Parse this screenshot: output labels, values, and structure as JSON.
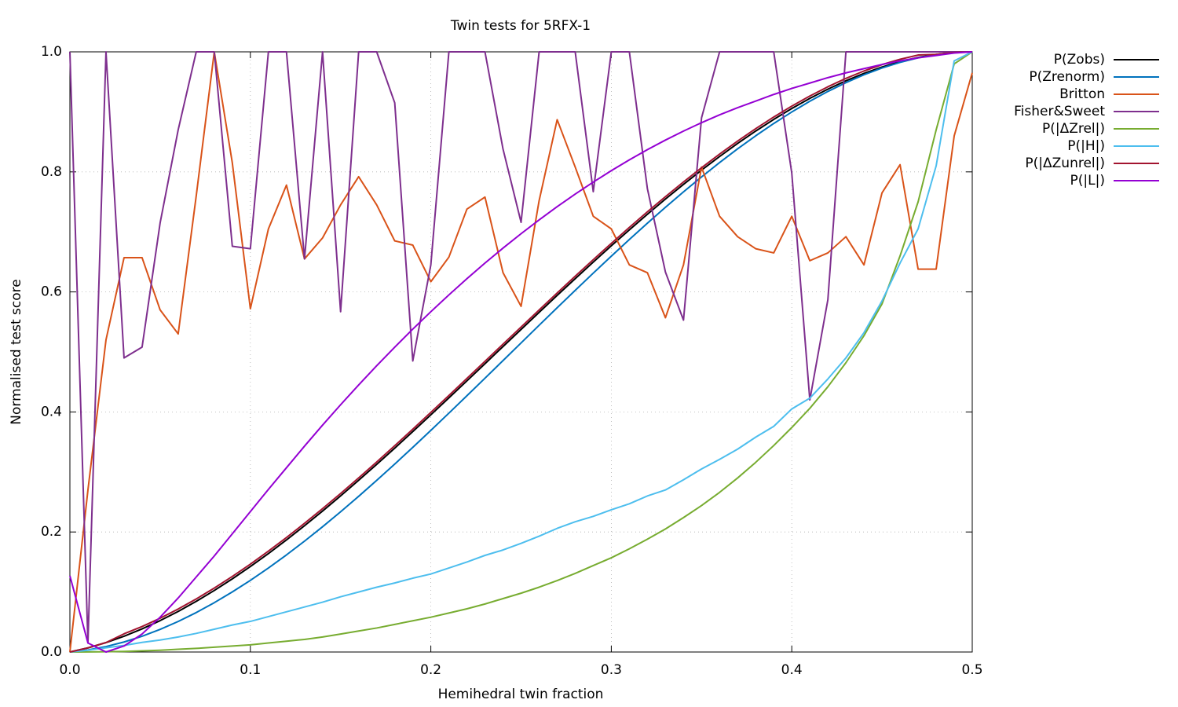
{
  "chart_data": {
    "type": "line",
    "title": "Twin tests for 5RFX-1",
    "xlabel": "Hemihedral twin fraction",
    "ylabel": "Normalised test score",
    "x": [
      0,
      0.01,
      0.02,
      0.03,
      0.04,
      0.05,
      0.06,
      0.07,
      0.08,
      0.09,
      0.1,
      0.11,
      0.12,
      0.13,
      0.14,
      0.15,
      0.16,
      0.17,
      0.18,
      0.19,
      0.2,
      0.21,
      0.22,
      0.23,
      0.24,
      0.25,
      0.26,
      0.27,
      0.28,
      0.29,
      0.3,
      0.31,
      0.32,
      0.33,
      0.34,
      0.35,
      0.36,
      0.37,
      0.38,
      0.39,
      0.4,
      0.41,
      0.42,
      0.43,
      0.44,
      0.45,
      0.46,
      0.47,
      0.48,
      0.49,
      0.5
    ],
    "series": [
      {
        "name": "P(Zobs)",
        "color": "#000000",
        "values": [
          0,
          0.0069,
          0.0157,
          0.0263,
          0.0385,
          0.0523,
          0.0676,
          0.0844,
          0.1025,
          0.1219,
          0.1424,
          0.1641,
          0.1867,
          0.2104,
          0.2349,
          0.2601,
          0.2861,
          0.3126,
          0.3397,
          0.3673,
          0.3952,
          0.4234,
          0.4518,
          0.4804,
          0.509,
          0.5375,
          0.5659,
          0.5942,
          0.6221,
          0.6497,
          0.6768,
          0.7034,
          0.7294,
          0.7547,
          0.7792,
          0.8029,
          0.8256,
          0.8474,
          0.868,
          0.8874,
          0.9056,
          0.9224,
          0.9378,
          0.9518,
          0.9641,
          0.9747,
          0.9836,
          0.9907,
          0.9958,
          0.9989,
          1
        ]
      },
      {
        "name": "P(Zrenorm)",
        "color": "#0072bd",
        "values": [
          0,
          0.0035,
          0.0091,
          0.0167,
          0.0263,
          0.0377,
          0.0509,
          0.0657,
          0.0822,
          0.1001,
          0.1194,
          0.14,
          0.1618,
          0.1847,
          0.2087,
          0.2336,
          0.2594,
          0.286,
          0.3132,
          0.341,
          0.3693,
          0.398,
          0.427,
          0.4562,
          0.4856,
          0.515,
          0.5444,
          0.5736,
          0.6026,
          0.6313,
          0.6595,
          0.6873,
          0.7145,
          0.741,
          0.7667,
          0.7916,
          0.8155,
          0.8384,
          0.8601,
          0.8806,
          0.8998,
          0.9177,
          0.934,
          0.9487,
          0.9618,
          0.9731,
          0.9825,
          0.99,
          0.9955,
          0.9989,
          1
        ]
      },
      {
        "name": "Britton",
        "color": "#d95319",
        "values": [
          0,
          0.27,
          0.52,
          0.657,
          0.657,
          0.57,
          0.53,
          0.76,
          1.0,
          0.815,
          0.572,
          0.705,
          0.778,
          0.655,
          0.69,
          0.745,
          0.792,
          0.745,
          0.685,
          0.678,
          0.617,
          0.658,
          0.738,
          0.758,
          0.632,
          0.576,
          0.752,
          0.887,
          0.808,
          0.726,
          0.705,
          0.645,
          0.632,
          0.557,
          0.645,
          0.808,
          0.726,
          0.692,
          0.672,
          0.665,
          0.726,
          0.652,
          0.665,
          0.692,
          0.645,
          0.765,
          0.812,
          0.638,
          0.638,
          0.86,
          0.965
        ]
      },
      {
        "name": "Fisher&Sweet",
        "color": "#7e2f8e",
        "values": [
          1.0,
          0.015,
          1.0,
          0.49,
          0.508,
          0.715,
          0.87,
          1.0,
          1.0,
          0.676,
          0.672,
          1.0,
          1.0,
          0.655,
          1.0,
          0.567,
          1.0,
          1.0,
          0.915,
          0.485,
          0.645,
          1.0,
          1.0,
          1.0,
          0.838,
          0.716,
          1.0,
          1.0,
          1.0,
          0.767,
          1.0,
          1.0,
          0.772,
          0.633,
          0.553,
          0.89,
          1.0,
          1.0,
          1.0,
          1.0,
          0.798,
          0.42,
          0.587,
          1.0,
          1.0,
          1.0,
          1.0,
          1.0,
          1.0,
          1.0,
          1.0
        ]
      },
      {
        "name": "P(|ΔZrel|)",
        "color": "#77ac30",
        "values": [
          0,
          0.0001,
          0.0005,
          0.001,
          0.002,
          0.003,
          0.0045,
          0.006,
          0.008,
          0.01,
          0.012,
          0.015,
          0.018,
          0.021,
          0.025,
          0.03,
          0.035,
          0.04,
          0.046,
          0.052,
          0.058,
          0.065,
          0.072,
          0.08,
          0.089,
          0.098,
          0.108,
          0.119,
          0.131,
          0.144,
          0.157,
          0.172,
          0.188,
          0.205,
          0.224,
          0.244,
          0.266,
          0.29,
          0.316,
          0.344,
          0.374,
          0.406,
          0.442,
          0.482,
          0.527,
          0.58,
          0.66,
          0.75,
          0.87,
          0.98,
          1.0
        ]
      },
      {
        "name": "P(|H|)",
        "color": "#4dbeee",
        "values": [
          0,
          0.003,
          0.007,
          0.011,
          0.016,
          0.02,
          0.025,
          0.031,
          0.038,
          0.045,
          0.051,
          0.059,
          0.067,
          0.075,
          0.083,
          0.092,
          0.1,
          0.108,
          0.115,
          0.123,
          0.13,
          0.14,
          0.15,
          0.161,
          0.17,
          0.181,
          0.193,
          0.206,
          0.217,
          0.226,
          0.237,
          0.247,
          0.26,
          0.27,
          0.287,
          0.305,
          0.321,
          0.338,
          0.358,
          0.376,
          0.405,
          0.423,
          0.455,
          0.49,
          0.532,
          0.585,
          0.648,
          0.705,
          0.81,
          0.985,
          1.0
        ]
      },
      {
        "name": "P(|ΔZunrel|)",
        "color": "#a2142f",
        "values": [
          0,
          0.0069,
          0.0157,
          0.0303,
          0.0425,
          0.0563,
          0.0716,
          0.0884,
          0.1065,
          0.1259,
          0.1464,
          0.1681,
          0.1907,
          0.2144,
          0.2389,
          0.2641,
          0.2901,
          0.3166,
          0.3437,
          0.3713,
          0.3992,
          0.4274,
          0.4558,
          0.4844,
          0.513,
          0.5415,
          0.5699,
          0.5982,
          0.6261,
          0.6537,
          0.6808,
          0.7074,
          0.7334,
          0.7587,
          0.7832,
          0.8069,
          0.8296,
          0.8514,
          0.872,
          0.8914,
          0.9096,
          0.9264,
          0.9418,
          0.9558,
          0.9681,
          0.9787,
          0.9876,
          0.9947,
          0.9958,
          0.9989,
          1
        ]
      },
      {
        "name": "P(|L|)",
        "color": "#9400d3",
        "values": [
          0.127,
          0.015,
          0,
          0.01,
          0.03,
          0.058,
          0.09,
          0.125,
          0.16,
          0.197,
          0.234,
          0.271,
          0.307,
          0.343,
          0.378,
          0.412,
          0.445,
          0.477,
          0.508,
          0.538,
          0.567,
          0.595,
          0.622,
          0.648,
          0.673,
          0.697,
          0.72,
          0.742,
          0.763,
          0.783,
          0.802,
          0.82,
          0.837,
          0.853,
          0.868,
          0.882,
          0.895,
          0.907,
          0.918,
          0.929,
          0.939,
          0.948,
          0.957,
          0.965,
          0.972,
          0.979,
          0.985,
          0.99,
          0.994,
          0.998,
          1.0
        ]
      }
    ],
    "xlim": [
      0,
      0.5
    ],
    "xticks": [
      {
        "value": 0,
        "label": "0.0"
      },
      0.1,
      0.2,
      0.3,
      0.4,
      0.5
    ],
    "ylim": [
      0,
      1
    ],
    "yticks": [
      {
        "value": 0,
        "label": "0.0"
      },
      0.2,
      0.4,
      0.6,
      0.8,
      {
        "value": 1,
        "label": "1.0"
      }
    ],
    "grid": true,
    "legend": "outside-right"
  }
}
